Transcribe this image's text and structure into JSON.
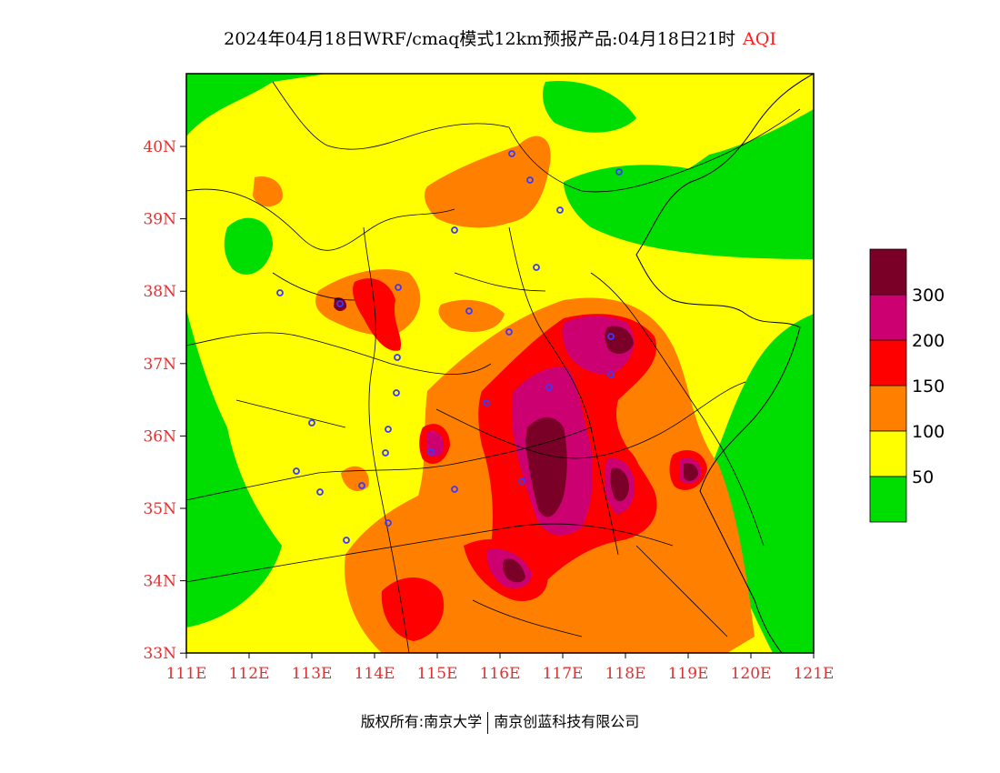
{
  "title": {
    "main": "2024年04月18日WRF/cmaq模式12km预报产品:04月18日21时",
    "product": "AQI"
  },
  "axes": {
    "lat_ticks": [
      "40N",
      "39N",
      "38N",
      "37N",
      "36N",
      "35N",
      "34N",
      "33N"
    ],
    "lon_ticks": [
      "111E",
      "112E",
      "113E",
      "114E",
      "115E",
      "116E",
      "117E",
      "118E",
      "119E",
      "120E",
      "121E"
    ]
  },
  "legend": {
    "labels": [
      "300",
      "200",
      "150",
      "100",
      "50"
    ],
    "colors": [
      "#7a0028",
      "#cc0070",
      "#ff0000",
      "#ff8000",
      "#ffff00",
      "#00dd00"
    ]
  },
  "footer": {
    "left": "版权所有:南京大学",
    "right": "南京创蓝科技有限公司"
  }
}
